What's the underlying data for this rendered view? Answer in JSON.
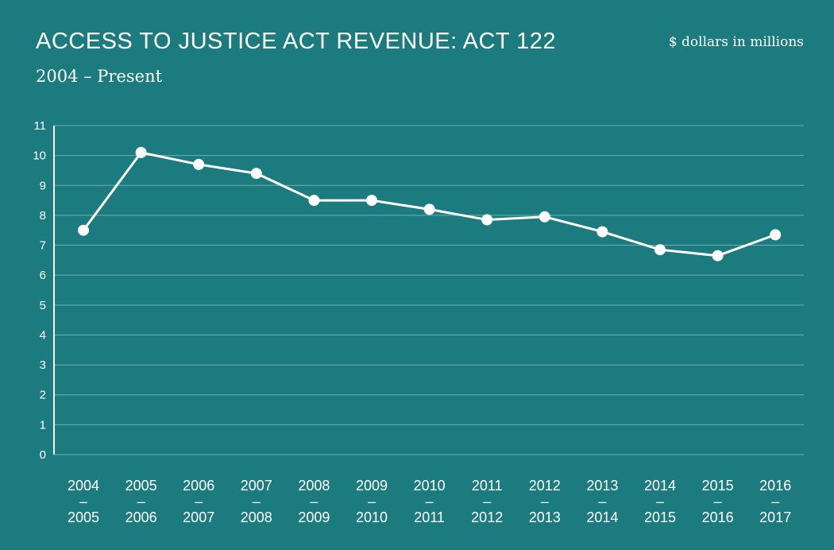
{
  "title": "ACCESS TO JUSTICE ACT REVENUE: ACT 122",
  "subtitle": "2004 – Present",
  "units_note": "$ dollars in millions",
  "colors": {
    "background": "#1b7b7f",
    "line": "#ffffff",
    "grid": "#6fb1b2"
  },
  "chart_data": {
    "type": "line",
    "title": "ACCESS TO JUSTICE ACT REVENUE: ACT 122",
    "subtitle": "2004 – Present",
    "ylabel": "$ dollars in millions",
    "xlabel": "",
    "ylim": [
      0,
      11
    ],
    "yticks": [
      0,
      1,
      2,
      3,
      4,
      5,
      6,
      7,
      8,
      9,
      10,
      11
    ],
    "grid": true,
    "categories": [
      [
        "2004",
        "–",
        "2005"
      ],
      [
        "2005",
        "–",
        "2006"
      ],
      [
        "2006",
        "–",
        "2007"
      ],
      [
        "2007",
        "–",
        "2008"
      ],
      [
        "2008",
        "–",
        "2009"
      ],
      [
        "2009",
        "–",
        "2010"
      ],
      [
        "2010",
        "–",
        "2011"
      ],
      [
        "2011",
        "–",
        "2012"
      ],
      [
        "2012",
        "–",
        "2013"
      ],
      [
        "2013",
        "–",
        "2014"
      ],
      [
        "2014",
        "–",
        "2015"
      ],
      [
        "2015",
        "–",
        "2016"
      ],
      [
        "2016",
        "–",
        "2017"
      ]
    ],
    "values": [
      7.5,
      10.1,
      9.7,
      9.4,
      8.5,
      8.5,
      8.2,
      7.85,
      7.95,
      7.45,
      6.85,
      6.65,
      7.35
    ]
  }
}
